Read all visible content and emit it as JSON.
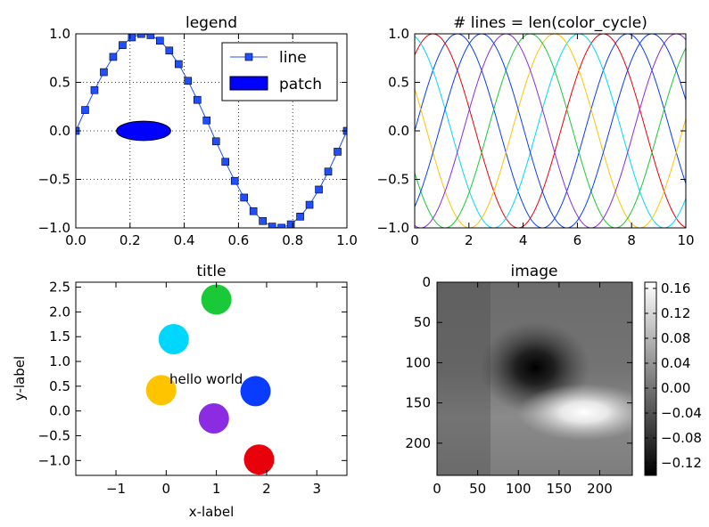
{
  "chart_data": [
    {
      "type": "line",
      "title": "legend",
      "xlabel": "",
      "ylabel": "",
      "xlim": [
        0,
        1
      ],
      "ylim": [
        -1,
        1
      ],
      "grid": true,
      "x_ticks": [
        "0.0",
        "0.2",
        "0.4",
        "0.6",
        "0.8",
        "1.0"
      ],
      "y_ticks": [
        "1.0",
        "0.5",
        "0.0",
        "−0.5",
        "−1.0"
      ],
      "series": [
        {
          "name": "line",
          "function": "sin(2*pi*x)",
          "x_start": 0,
          "x_end": 1,
          "n_points": 30,
          "marker": "square",
          "color": "#1f4fff"
        }
      ],
      "patch": {
        "name": "patch",
        "type": "ellipse",
        "center": [
          0.25,
          0.0
        ],
        "width": 0.2,
        "height": 0.2,
        "color": "#0000ff"
      },
      "legend": {
        "placement": "top-right",
        "entries": [
          "line",
          "patch"
        ]
      }
    },
    {
      "type": "line",
      "title": "# lines = len(color_cycle)",
      "xlim": [
        0,
        10
      ],
      "ylim": [
        -1,
        1
      ],
      "grid": false,
      "x_ticks": [
        "0",
        "2",
        "4",
        "6",
        "8",
        "10"
      ],
      "y_ticks": [
        "1.0",
        "0.5",
        "0.0",
        "−0.5",
        "−1.0"
      ],
      "series": [
        {
          "name": "sin(x + 0.0)",
          "phase": 0.0,
          "color": "#0a3cff"
        },
        {
          "name": "sin(x + 0.9)",
          "phase": 0.898,
          "color": "#e8000b"
        },
        {
          "name": "sin(x + 1.8)",
          "phase": 1.795,
          "color": "#00d7ff"
        },
        {
          "name": "sin(x + 2.7)",
          "phase": 2.693,
          "color": "#ffc400"
        },
        {
          "name": "sin(x + 3.6)",
          "phase": 3.59,
          "color": "#1ac938"
        },
        {
          "name": "sin(x + 4.5)",
          "phase": 4.488,
          "color": "#8b2be2"
        },
        {
          "name": "sin(x + 5.4)",
          "phase": 5.386,
          "color": "#0a3cff"
        }
      ]
    },
    {
      "type": "scatter",
      "title": "title",
      "xlabel": "x-label",
      "ylabel": "y-label",
      "xlim": [
        -1.8,
        3.6
      ],
      "ylim": [
        -1.3,
        2.6
      ],
      "x_ticks": [
        "−1",
        "0",
        "1",
        "2",
        "3"
      ],
      "y_ticks": [
        "2.5",
        "2.0",
        "1.5",
        "1.0",
        "0.5",
        "0.0",
        "−0.5",
        "−1.0"
      ],
      "points": [
        {
          "x": 0.15,
          "y": 1.45,
          "color": "#00d7ff"
        },
        {
          "x": 1.0,
          "y": 2.25,
          "color": "#1ac938"
        },
        {
          "x": -0.1,
          "y": 0.42,
          "color": "#ffc400"
        },
        {
          "x": 1.78,
          "y": 0.4,
          "color": "#0a3cff"
        },
        {
          "x": 0.95,
          "y": -0.15,
          "color": "#8b2be2"
        },
        {
          "x": 1.85,
          "y": -0.98,
          "color": "#e8000b"
        }
      ],
      "annotation": {
        "text": "hello world",
        "x": 0.85,
        "y": 0.65
      }
    },
    {
      "type": "heatmap",
      "title": "image",
      "xlim": [
        0,
        240
      ],
      "ylim": [
        240,
        0
      ],
      "x_ticks": [
        "0",
        "50",
        "100",
        "150",
        "200"
      ],
      "y_ticks": [
        "0",
        "50",
        "100",
        "150",
        "200"
      ],
      "colormap": "gray",
      "vmin": -0.14,
      "vmax": 0.17,
      "colorbar_ticks": [
        "0.16",
        "0.12",
        "0.08",
        "0.04",
        "0.00",
        "−0.04",
        "−0.08",
        "−0.12"
      ],
      "features": [
        {
          "kind": "minimum",
          "x": 120,
          "y": 105,
          "value": -0.14
        },
        {
          "kind": "maximum",
          "x": 180,
          "y": 160,
          "value": 0.17
        }
      ]
    }
  ]
}
